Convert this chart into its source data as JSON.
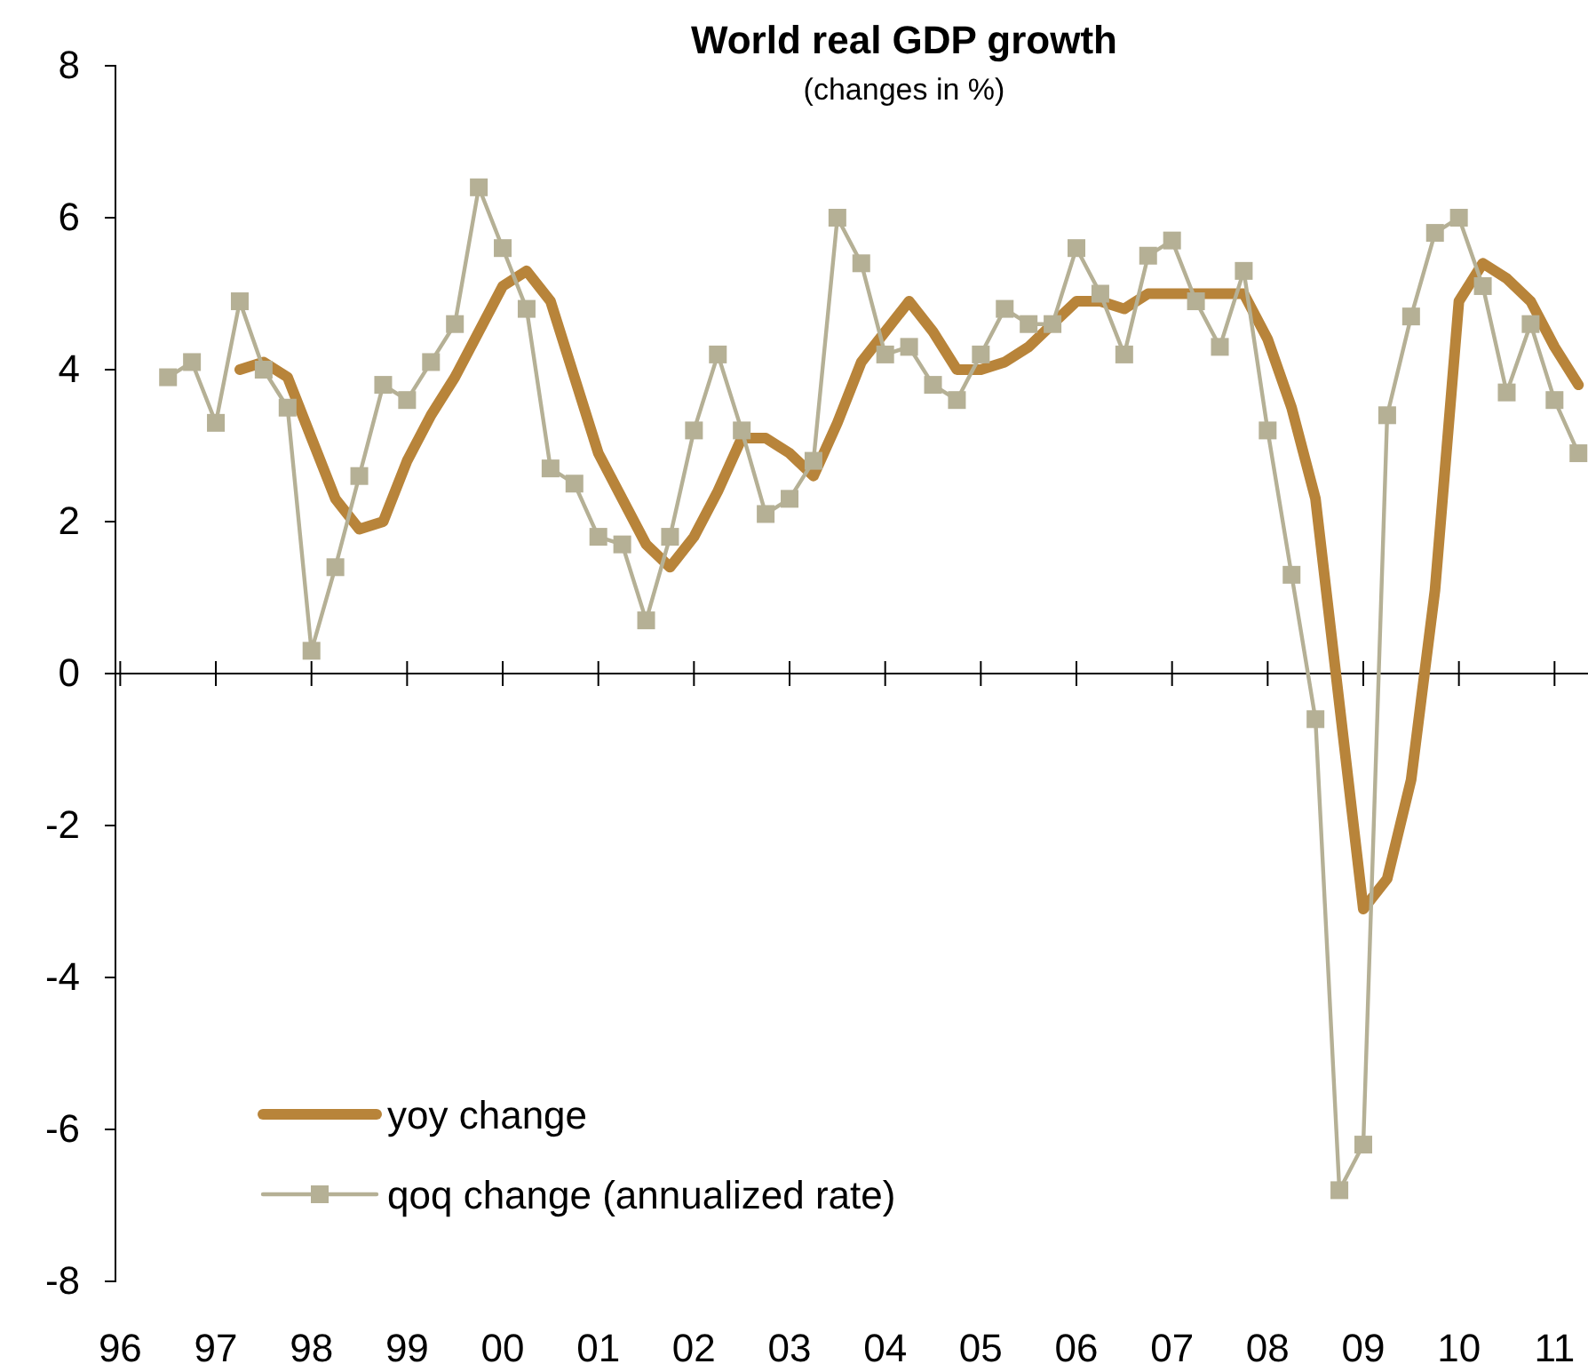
{
  "chart_data": {
    "type": "line",
    "title": "World real GDP growth",
    "subtitle": "(changes in %)",
    "x": [
      1996.5,
      1996.75,
      1997,
      1997.25,
      1997.5,
      1997.75,
      1998,
      1998.25,
      1998.5,
      1998.75,
      1999,
      1999.25,
      1999.5,
      1999.75,
      2000,
      2000.25,
      2000.5,
      2000.75,
      2001,
      2001.25,
      2001.5,
      2001.75,
      2002,
      2002.25,
      2002.5,
      2002.75,
      2003,
      2003.25,
      2003.5,
      2003.75,
      2004,
      2004.25,
      2004.5,
      2004.75,
      2005,
      2005.25,
      2005.5,
      2005.75,
      2006,
      2006.25,
      2006.5,
      2006.75,
      2007,
      2007.25,
      2007.5,
      2007.75,
      2008,
      2008.25,
      2008.5,
      2008.75,
      2009,
      2009.25,
      2009.5,
      2009.75,
      2010,
      2010.25,
      2010.5,
      2010.75,
      2011,
      2011.25
    ],
    "series": [
      {
        "name": "yoy change",
        "color": "#b8843a",
        "marker": "none",
        "line_style": "solid",
        "values": [
          null,
          null,
          null,
          4.0,
          4.1,
          3.9,
          3.1,
          2.3,
          1.9,
          2.0,
          2.8,
          3.4,
          3.9,
          4.5,
          5.1,
          5.3,
          4.9,
          3.9,
          2.9,
          2.3,
          1.7,
          1.4,
          1.8,
          2.4,
          3.1,
          3.1,
          2.9,
          2.6,
          3.3,
          4.1,
          4.5,
          4.9,
          4.5,
          4.0,
          4.0,
          4.1,
          4.3,
          4.6,
          4.9,
          4.9,
          4.8,
          5.0,
          5.0,
          5.0,
          5.0,
          5.0,
          4.4,
          3.5,
          2.3,
          -0.4,
          -3.1,
          -2.7,
          -1.4,
          1.1,
          4.9,
          5.4,
          5.2,
          4.9,
          4.3,
          3.8
        ]
      },
      {
        "name": "qoq change (annualized rate)",
        "color": "#b5b095",
        "marker": "square",
        "line_style": "solid",
        "values": [
          3.9,
          4.1,
          3.3,
          4.9,
          4.0,
          3.5,
          0.3,
          1.4,
          2.6,
          3.8,
          3.6,
          4.1,
          4.6,
          6.4,
          5.6,
          4.8,
          2.7,
          2.5,
          1.8,
          1.7,
          0.7,
          1.8,
          3.2,
          4.2,
          3.2,
          2.1,
          2.3,
          2.8,
          6.0,
          5.4,
          4.2,
          4.3,
          3.8,
          3.6,
          4.2,
          4.8,
          4.6,
          4.6,
          5.6,
          5.0,
          4.2,
          5.5,
          5.7,
          4.9,
          4.3,
          5.3,
          3.2,
          1.3,
          -0.6,
          -6.8,
          -6.2,
          3.4,
          4.7,
          5.8,
          6.0,
          5.1,
          3.7,
          4.6,
          3.6,
          2.9
        ]
      }
    ],
    "xlim": [
      1995.95,
      2011.35
    ],
    "xticks": [
      {
        "value": 1996,
        "label": "96"
      },
      {
        "value": 1997,
        "label": "97"
      },
      {
        "value": 1998,
        "label": "98"
      },
      {
        "value": 1999,
        "label": "99"
      },
      {
        "value": 2000,
        "label": "00"
      },
      {
        "value": 2001,
        "label": "01"
      },
      {
        "value": 2002,
        "label": "02"
      },
      {
        "value": 2003,
        "label": "03"
      },
      {
        "value": 2004,
        "label": "04"
      },
      {
        "value": 2005,
        "label": "05"
      },
      {
        "value": 2006,
        "label": "06"
      },
      {
        "value": 2007,
        "label": "07"
      },
      {
        "value": 2008,
        "label": "08"
      },
      {
        "value": 2009,
        "label": "09"
      },
      {
        "value": 2010,
        "label": "10"
      },
      {
        "value": 2011,
        "label": "11"
      }
    ],
    "ylim": [
      -8,
      8
    ],
    "yticks": [
      -8,
      -6,
      -4,
      -2,
      0,
      2,
      4,
      6,
      8
    ],
    "legend": "bottom left"
  }
}
